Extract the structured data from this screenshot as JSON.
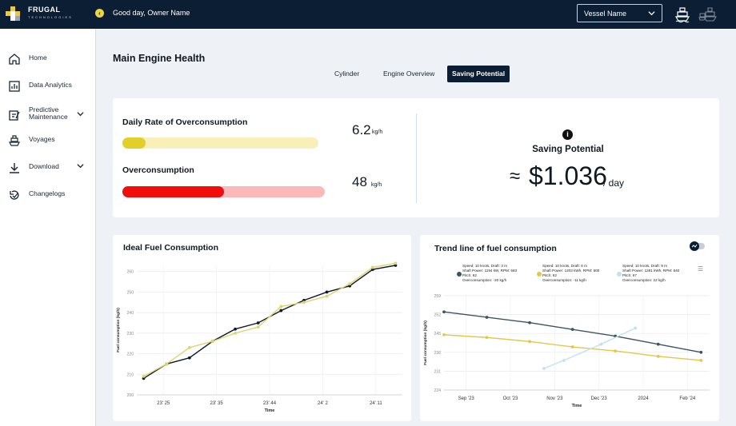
{
  "app": {
    "logo_text": "FRUGAL",
    "logo_subtext": "TECHNOLOGIES",
    "greeting": "Good day, Owner Name",
    "greeting_badge": "‹",
    "vessel_select": {
      "value": "Vessel Name",
      "chevron": "⌵"
    }
  },
  "sidebar": {
    "items": [
      {
        "label": "Home",
        "icon": "home-icon"
      },
      {
        "label": "Data Analytics",
        "icon": "bar-chart-icon"
      },
      {
        "label": "Predictive Maintenance",
        "icon": "maintenance-icon",
        "has_submenu": true
      },
      {
        "label": "Voyages",
        "icon": "ship-icon"
      },
      {
        "label": "Download",
        "icon": "download-icon",
        "has_submenu": true
      },
      {
        "label": "Changelogs",
        "icon": "changelog-icon"
      }
    ],
    "chevron": "⌄"
  },
  "page": {
    "title": "Main Engine Health",
    "tabs": [
      {
        "label": "Cylinder",
        "active": false
      },
      {
        "label": "Engine Overview",
        "active": false
      },
      {
        "label": "Saving Potential",
        "active": true
      }
    ]
  },
  "metrics": {
    "daily_rate": {
      "title": "Daily Rate of Overconsumption",
      "value": "6.2",
      "unit": "kg/h",
      "fill_fraction": 0.12,
      "fill_color": "#e3cf2a",
      "track_color": "#f8efb9"
    },
    "overconsumption": {
      "title": "Overconsumption",
      "value": "48",
      "unit": "kg/h",
      "fill_fraction": 0.5,
      "fill_color": "#f20d0d",
      "track_color": "#fbb9b9"
    }
  },
  "saving_potential": {
    "info_icon": "i",
    "title": "Saving Potential",
    "approx": "≈",
    "value": "$1.036",
    "unit": "/ day"
  },
  "chart_data": [
    {
      "type": "line",
      "title": "Ideal Fuel Consumption",
      "xlabel": "Time",
      "ylabel": "Fuel consumption (kg/h)",
      "x_tick_labels": [
        "23' 25",
        "23' 35",
        "23' 44",
        "24' 2",
        "24' 11"
      ],
      "y_ticks": [
        200,
        210,
        220,
        230,
        240,
        250,
        260
      ],
      "ylim": [
        200,
        263
      ],
      "grid": true,
      "series": [
        {
          "color": "#0f1b2d",
          "x": [
            0,
            1,
            2,
            3,
            4,
            5,
            6,
            7,
            8,
            9,
            10,
            11
          ],
          "values": [
            208,
            215,
            218,
            226,
            232,
            235,
            241,
            246,
            250,
            253,
            261,
            263
          ]
        },
        {
          "color": "#e0d36a",
          "x": [
            0,
            1,
            2,
            3,
            4,
            5,
            6,
            7,
            8,
            9,
            10,
            11
          ],
          "values": [
            209,
            215,
            223,
            226,
            230,
            233,
            243,
            245,
            248,
            254,
            262,
            264
          ]
        }
      ]
    },
    {
      "type": "line",
      "title": "Trend line of fuel consumption",
      "xlabel": "Time",
      "ylabel": "Fuel consumption (kg/h)",
      "x_tick_labels": [
        "Sep '23",
        "Oct '23",
        "Nov '23",
        "Dec '23",
        "2024",
        "Feb '24"
      ],
      "y_ticks": [
        224,
        231,
        238,
        245,
        252,
        259
      ],
      "ylim": [
        224,
        259
      ],
      "grid": true,
      "legend_placement": "top",
      "series": [
        {
          "color": "#3b5563",
          "legend": [
            "Speed: 10 knots, Draft: 3 m",
            "Shaft Power: 1194 kW, RPM: 583",
            "Pitch: 62",
            "Overconsumption: -20 kg/h"
          ],
          "x": [
            0,
            1.5,
            3,
            4.5,
            6,
            7.5,
            9
          ],
          "values": [
            253,
            251,
            249,
            246.5,
            244,
            241,
            238
          ]
        },
        {
          "color": "#e2c84a",
          "legend": [
            "Speed: 10 knots, Draft: 6 m",
            "Shaft Power: 1203 kWh, RPM: 600",
            "Pitch: 62",
            "Overconsumption: -11 kg/h"
          ],
          "x": [
            0,
            1.5,
            3,
            4.5,
            6,
            7.5,
            9
          ],
          "values": [
            244.5,
            243.5,
            242,
            240,
            238.5,
            236.5,
            235
          ]
        },
        {
          "color": "#bfe3ee",
          "legend": [
            "Speed: 10 knots, Draft: 9 m",
            "Shaft Power: 1281 kWh, RPM: 640",
            "Pitch: 67",
            "Overconsumption: 22 kg/h"
          ],
          "x": [
            3.5,
            4.2,
            5.5,
            6.7
          ],
          "values": [
            232,
            235,
            241,
            247
          ]
        }
      ]
    }
  ]
}
